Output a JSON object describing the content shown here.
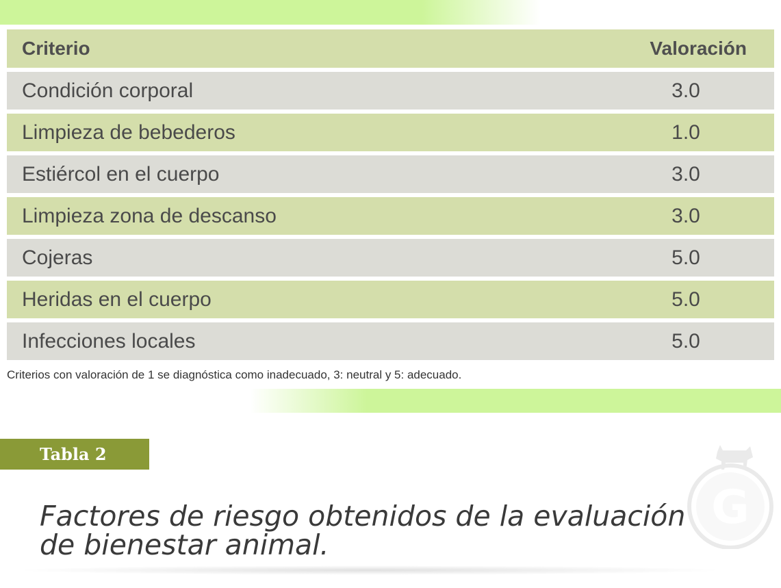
{
  "table": {
    "header": {
      "criterio": "Criterio",
      "valoracion": "Valoración"
    },
    "rows": [
      {
        "criterio": "Condición corporal",
        "valoracion": "3.0",
        "shade": "grey"
      },
      {
        "criterio": "Limpieza de bebederos",
        "valoracion": "1.0",
        "shade": "green"
      },
      {
        "criterio": "Estiércol en el cuerpo",
        "valoracion": "3.0",
        "shade": "grey"
      },
      {
        "criterio": "Limpieza zona de descanso",
        "valoracion": "3.0",
        "shade": "green"
      },
      {
        "criterio": "Cojeras",
        "valoracion": "5.0",
        "shade": "grey"
      },
      {
        "criterio": "Heridas en el cuerpo",
        "valoracion": "5.0",
        "shade": "green"
      },
      {
        "criterio": "Infecciones locales",
        "valoracion": "5.0",
        "shade": "grey"
      }
    ]
  },
  "note": "Criterios con valoración de 1 se diagnóstica como inadecuado, 3: neutral y 5: adecuado.",
  "section": {
    "tab_label": "Tabla 2",
    "title_line1": "Factores de riesgo obtenidos de la evaluación",
    "title_line2": "de bienestar animal."
  },
  "watermark": {
    "icon": "cow-g-logo-icon",
    "letter": "G"
  },
  "colors": {
    "accent_band": "#cdf59a",
    "row_green": "#d4deab",
    "row_grey": "#dcdcd6",
    "tab_bg": "#8a9a37"
  }
}
